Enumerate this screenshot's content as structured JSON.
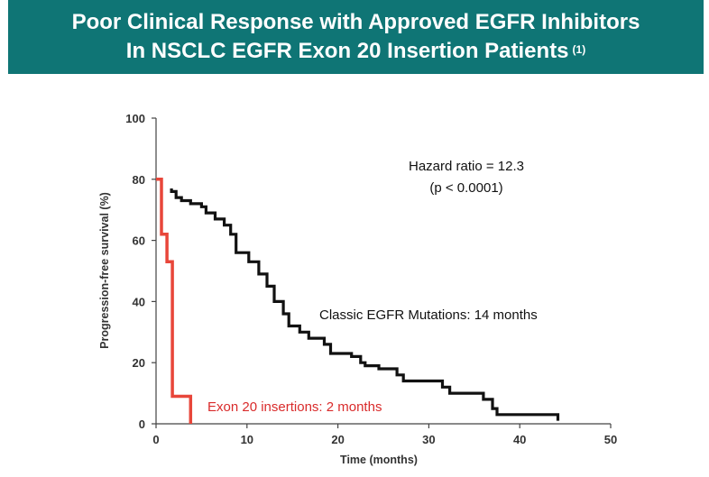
{
  "header": {
    "title_line1": "Poor Clinical Response with Approved EGFR Inhibitors",
    "title_line2": "In NSCLC EGFR Exon 20 Insertion Patients",
    "footnote_ref": "(1)"
  },
  "chart_data": {
    "type": "line",
    "chart_style": "kaplan-meier step curves",
    "xlabel": "Time (months)",
    "ylabel": "Progression-free survival (%)",
    "xlim": [
      0,
      50
    ],
    "ylim": [
      0,
      100
    ],
    "x_ticks": [
      "0",
      "10",
      "20",
      "30",
      "40",
      "50"
    ],
    "y_ticks": [
      "0",
      "20",
      "40",
      "60",
      "80",
      "100"
    ],
    "grid": false,
    "annotations": {
      "hazard_ratio": "Hazard ratio = 12.3",
      "p_value": "(p < 0.0001)",
      "classic_label": "Classic EGFR Mutations: 14 months",
      "exon20_label": "Exon 20 insertions: 2 months"
    },
    "series": [
      {
        "color": "#e8463a",
        "points": [
          [
            0,
            80
          ],
          [
            0.6,
            80
          ],
          [
            0.6,
            62
          ],
          [
            1.2,
            62
          ],
          [
            1.2,
            53
          ],
          [
            1.8,
            53
          ],
          [
            1.8,
            9
          ],
          [
            3.8,
            9
          ],
          [
            3.8,
            0
          ]
        ]
      },
      {
        "color": "#111111",
        "points": [
          [
            1.7,
            77
          ],
          [
            1.7,
            76
          ],
          [
            2.2,
            76
          ],
          [
            2.2,
            74
          ],
          [
            2.8,
            74
          ],
          [
            2.8,
            73
          ],
          [
            3.8,
            73
          ],
          [
            3.8,
            72
          ],
          [
            5.0,
            72
          ],
          [
            5.0,
            71
          ],
          [
            5.5,
            71
          ],
          [
            5.5,
            69
          ],
          [
            6.5,
            69
          ],
          [
            6.5,
            67
          ],
          [
            7.5,
            67
          ],
          [
            7.5,
            65
          ],
          [
            8.2,
            65
          ],
          [
            8.2,
            62
          ],
          [
            8.8,
            62
          ],
          [
            8.8,
            56
          ],
          [
            10.2,
            56
          ],
          [
            10.2,
            53
          ],
          [
            11.3,
            53
          ],
          [
            11.3,
            49
          ],
          [
            12.2,
            49
          ],
          [
            12.2,
            45
          ],
          [
            13.0,
            45
          ],
          [
            13.0,
            40
          ],
          [
            14.0,
            40
          ],
          [
            14.0,
            36
          ],
          [
            14.6,
            36
          ],
          [
            14.6,
            32
          ],
          [
            15.8,
            32
          ],
          [
            15.8,
            30
          ],
          [
            16.8,
            30
          ],
          [
            16.8,
            28
          ],
          [
            18.5,
            28
          ],
          [
            18.5,
            26
          ],
          [
            19.2,
            26
          ],
          [
            19.2,
            23
          ],
          [
            21.5,
            23
          ],
          [
            21.5,
            22
          ],
          [
            22.5,
            22
          ],
          [
            22.5,
            20
          ],
          [
            23.0,
            20
          ],
          [
            23.0,
            19
          ],
          [
            24.5,
            19
          ],
          [
            24.5,
            18
          ],
          [
            26.5,
            18
          ],
          [
            26.5,
            16
          ],
          [
            27.2,
            16
          ],
          [
            27.2,
            14
          ],
          [
            31.5,
            14
          ],
          [
            31.5,
            12
          ],
          [
            32.3,
            12
          ],
          [
            32.3,
            10
          ],
          [
            36.0,
            10
          ],
          [
            36.0,
            8
          ],
          [
            37.0,
            8
          ],
          [
            37.0,
            5
          ],
          [
            37.5,
            5
          ],
          [
            37.5,
            3
          ],
          [
            44.2,
            3
          ],
          [
            44.2,
            1
          ]
        ]
      }
    ]
  }
}
